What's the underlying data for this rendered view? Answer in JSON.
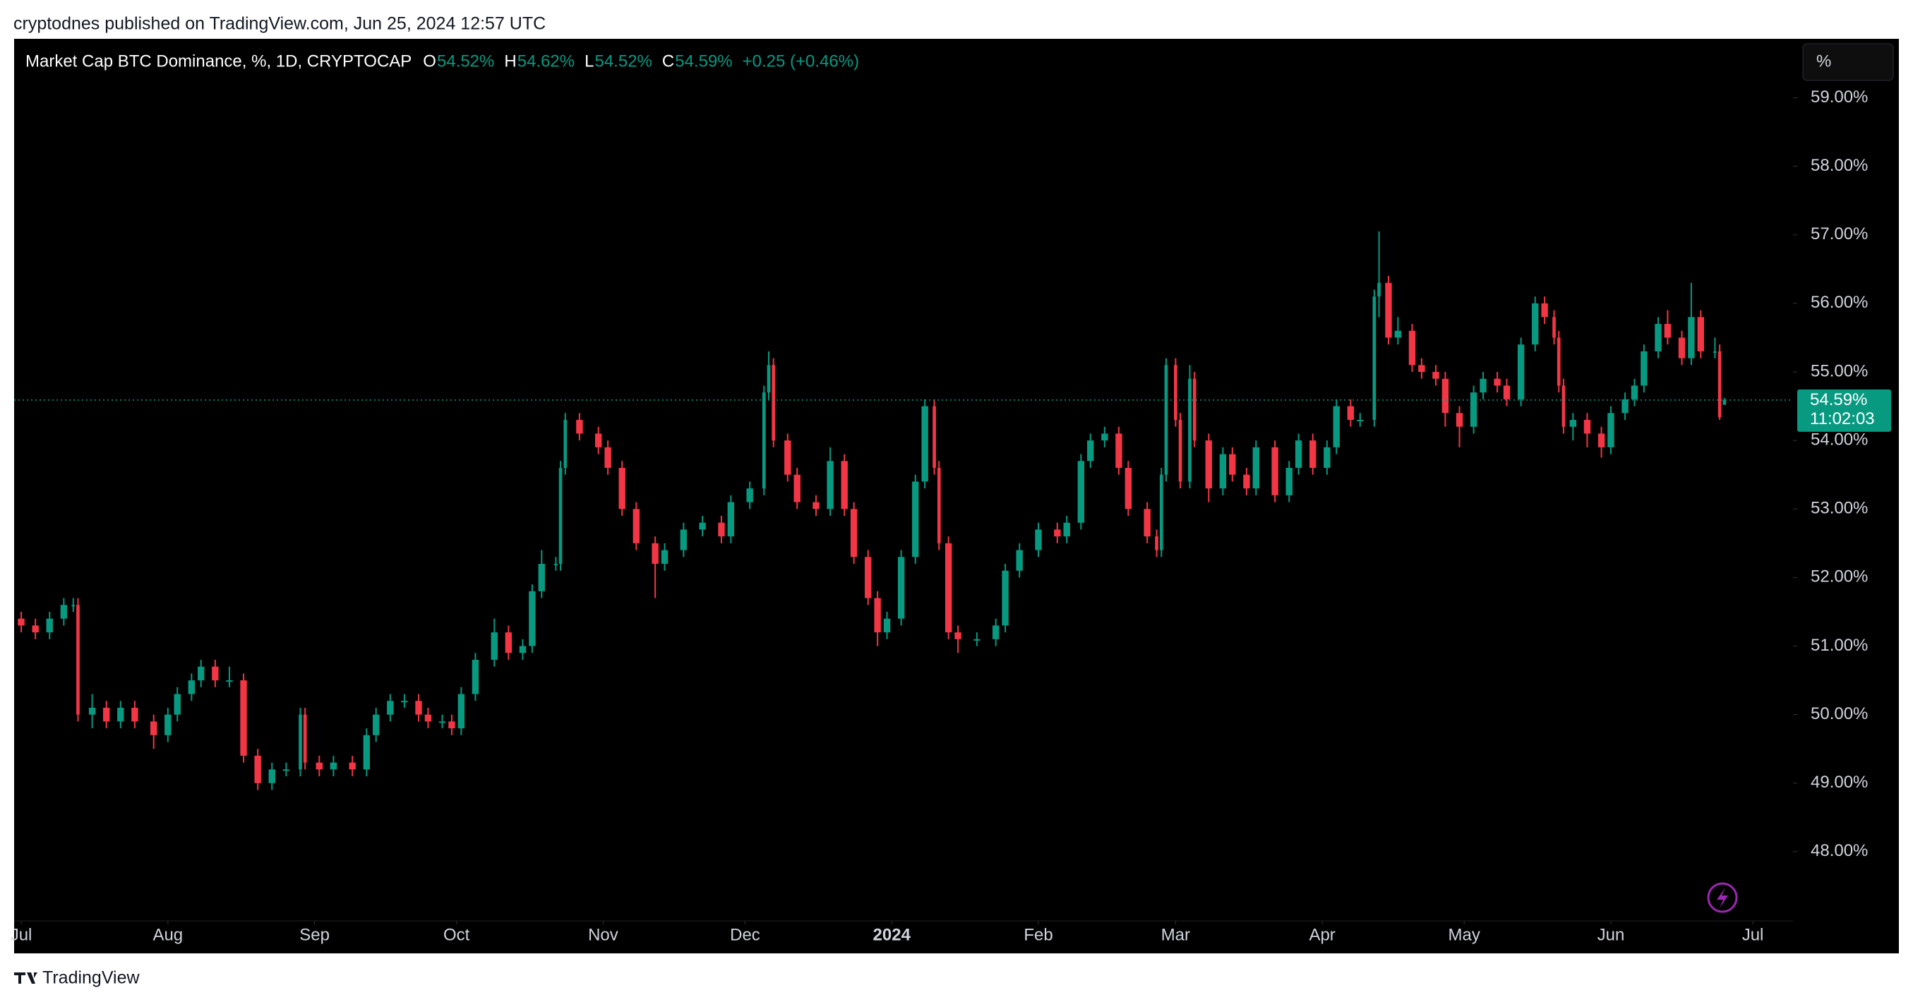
{
  "header": {
    "published": "cryptodnes published on TradingView.com, Jun 25, 2024 12:57 UTC"
  },
  "footer": {
    "brand": "TradingView"
  },
  "chart_data": {
    "type": "candlestick",
    "title": "Market Cap BTC Dominance, %, 1D, CRYPTOCAP",
    "legend": [
      {
        "key": "O",
        "text": "54.52%"
      },
      {
        "key": "H",
        "text": "54.62%"
      },
      {
        "key": "L",
        "text": "54.52%"
      },
      {
        "key": "C",
        "text": "54.59%"
      }
    ],
    "change": "+0.25 (+0.46%)",
    "scale_button": "%",
    "price_label": "54.59%",
    "countdown": "11:02:03",
    "up_color": "#089981",
    "down_color": "#f23645",
    "xlim": [
      -1.5,
      374.5
    ],
    "ylim": [
      46.99,
      59.86
    ],
    "xticks": [
      {
        "value": 0,
        "label": "Jul"
      },
      {
        "value": 31,
        "label": "Aug"
      },
      {
        "value": 62,
        "label": "Sep"
      },
      {
        "value": 92,
        "label": "Oct"
      },
      {
        "value": 123,
        "label": "Nov"
      },
      {
        "value": 153,
        "label": "Dec"
      },
      {
        "value": 184,
        "label": "2024",
        "bold": true
      },
      {
        "value": 215,
        "label": "Feb"
      },
      {
        "value": 244,
        "label": "Mar"
      },
      {
        "value": 275,
        "label": "Apr"
      },
      {
        "value": 305,
        "label": "May"
      },
      {
        "value": 336,
        "label": "Jun"
      },
      {
        "value": 366,
        "label": "Jul"
      }
    ],
    "yticks": [
      {
        "value": 48,
        "label": "48.00%"
      },
      {
        "value": 49,
        "label": "49.00%"
      },
      {
        "value": 50,
        "label": "50.00%"
      },
      {
        "value": 51,
        "label": "51.00%"
      },
      {
        "value": 52,
        "label": "52.00%"
      },
      {
        "value": 53,
        "label": "53.00%"
      },
      {
        "value": 54,
        "label": "54.00%"
      },
      {
        "value": 55,
        "label": "55.00%"
      },
      {
        "value": 56,
        "label": "56.00%"
      },
      {
        "value": 57,
        "label": "57.00%"
      },
      {
        "value": 58,
        "label": "58.00%"
      },
      {
        "value": 59,
        "label": "59.00%"
      }
    ],
    "x": [
      0,
      3,
      6,
      9,
      11,
      12,
      15,
      18,
      21,
      24,
      28,
      31,
      33,
      36,
      38,
      41,
      44,
      47,
      50,
      53,
      56,
      59,
      60,
      63,
      66,
      70,
      73,
      75,
      78,
      81,
      84,
      86,
      89,
      91,
      93,
      96,
      100,
      103,
      106,
      108,
      110,
      113,
      114,
      115,
      118,
      122,
      124,
      127,
      130,
      134,
      136,
      140,
      144,
      148,
      150,
      154,
      157,
      158,
      159,
      162,
      164,
      168,
      171,
      174,
      176,
      179,
      181,
      183,
      186,
      189,
      191,
      193,
      194,
      196,
      198,
      202,
      206,
      208,
      211,
      215,
      219,
      221,
      224,
      226,
      229,
      232,
      234,
      238,
      240,
      241,
      242,
      244,
      245,
      247,
      248,
      251,
      254,
      256,
      259,
      261,
      265,
      268,
      270,
      273,
      276,
      278,
      281,
      283,
      286,
      287,
      289,
      291,
      294,
      296,
      299,
      301,
      304,
      307,
      309,
      312,
      314,
      317,
      320,
      322,
      324,
      325,
      326,
      328,
      331,
      334,
      336,
      339,
      341,
      343,
      346,
      348,
      351,
      353,
      355,
      358,
      359,
      360
    ],
    "open": [
      51.4,
      51.3,
      51.2,
      51.4,
      51.6,
      51.6,
      50.0,
      50.1,
      49.9,
      50.1,
      49.9,
      49.7,
      50.0,
      50.3,
      50.5,
      50.7,
      50.5,
      50.5,
      49.4,
      49.0,
      49.2,
      49.2,
      50.0,
      49.3,
      49.2,
      49.3,
      49.2,
      49.7,
      50.0,
      50.2,
      50.2,
      50.0,
      49.9,
      49.9,
      49.8,
      50.3,
      50.8,
      51.2,
      50.9,
      51.0,
      51.8,
      52.2,
      52.2,
      53.6,
      54.3,
      54.1,
      53.9,
      53.6,
      53.0,
      52.5,
      52.2,
      52.4,
      52.7,
      52.8,
      52.6,
      53.1,
      53.3,
      54.7,
      55.1,
      54.0,
      53.5,
      53.1,
      53.0,
      53.7,
      53.0,
      52.3,
      51.7,
      51.2,
      51.4,
      52.3,
      53.4,
      54.5,
      53.6,
      52.5,
      51.2,
      51.1,
      51.1,
      51.3,
      52.1,
      52.4,
      52.7,
      52.6,
      52.8,
      53.7,
      54.0,
      54.1,
      53.6,
      53.0,
      52.6,
      52.4,
      53.5,
      55.1,
      54.3,
      53.4,
      54.9,
      54.0,
      53.3,
      53.8,
      53.5,
      53.3,
      53.9,
      53.2,
      53.6,
      54.0,
      53.6,
      53.9,
      54.5,
      54.3,
      54.3,
      56.1,
      56.3,
      55.5,
      55.6,
      55.1,
      55.0,
      54.9,
      54.4,
      54.2,
      54.7,
      54.9,
      54.8,
      54.6,
      55.4,
      56.0,
      55.8,
      55.5,
      54.8,
      54.2,
      54.3,
      54.1,
      53.9,
      54.4,
      54.6,
      54.8,
      55.3,
      55.7,
      55.5,
      55.2,
      55.8,
      55.3,
      55.3,
      54.52
    ],
    "high": [
      51.5,
      51.4,
      51.5,
      51.7,
      51.7,
      51.7,
      50.3,
      50.2,
      50.2,
      50.2,
      50.0,
      50.1,
      50.4,
      50.6,
      50.8,
      50.8,
      50.7,
      50.6,
      49.5,
      49.3,
      49.3,
      50.1,
      50.1,
      49.4,
      49.4,
      49.4,
      49.8,
      50.1,
      50.3,
      50.3,
      50.3,
      50.1,
      50.0,
      50.0,
      50.4,
      50.9,
      51.4,
      51.3,
      51.1,
      51.9,
      52.4,
      52.3,
      53.7,
      54.4,
      54.4,
      54.2,
      54.0,
      53.7,
      53.1,
      52.6,
      52.5,
      52.8,
      52.9,
      52.9,
      53.2,
      53.4,
      54.8,
      55.3,
      55.2,
      54.1,
      53.6,
      53.2,
      53.9,
      53.8,
      53.1,
      52.4,
      51.8,
      51.5,
      52.4,
      53.5,
      54.6,
      54.6,
      53.7,
      52.6,
      51.3,
      51.2,
      51.4,
      52.2,
      52.5,
      52.8,
      52.8,
      52.9,
      53.8,
      54.1,
      54.2,
      54.2,
      53.7,
      53.1,
      52.7,
      53.6,
      55.2,
      55.2,
      54.4,
      55.1,
      55.0,
      54.1,
      53.9,
      53.9,
      53.6,
      54.0,
      54.0,
      53.7,
      54.1,
      54.1,
      54.0,
      54.6,
      54.6,
      54.4,
      56.2,
      57.05,
      56.4,
      55.8,
      55.7,
      55.2,
      55.1,
      55.0,
      54.5,
      54.8,
      55.0,
      55.0,
      54.9,
      55.5,
      56.1,
      56.1,
      55.9,
      55.6,
      54.9,
      54.4,
      54.4,
      54.2,
      54.5,
      54.7,
      54.9,
      55.4,
      55.8,
      55.9,
      55.6,
      56.3,
      55.9,
      55.5,
      55.4,
      54.62
    ],
    "low": [
      51.2,
      51.1,
      51.1,
      51.3,
      51.5,
      49.9,
      49.8,
      49.8,
      49.8,
      49.8,
      49.5,
      49.6,
      49.9,
      50.2,
      50.4,
      50.4,
      50.4,
      49.3,
      48.9,
      48.9,
      49.1,
      49.1,
      49.2,
      49.1,
      49.1,
      49.1,
      49.1,
      49.6,
      49.9,
      50.1,
      49.9,
      49.8,
      49.8,
      49.7,
      49.7,
      50.2,
      50.7,
      50.8,
      50.8,
      50.9,
      51.7,
      52.1,
      52.1,
      53.5,
      54.0,
      53.8,
      53.5,
      52.9,
      52.4,
      51.7,
      52.1,
      52.3,
      52.6,
      52.5,
      52.5,
      53.0,
      53.2,
      54.6,
      53.9,
      53.4,
      53.0,
      52.9,
      52.9,
      52.9,
      52.2,
      51.6,
      51.0,
      51.1,
      51.3,
      52.2,
      53.3,
      53.5,
      52.4,
      51.1,
      50.9,
      51.0,
      51.0,
      51.2,
      52.0,
      52.3,
      52.5,
      52.5,
      52.7,
      53.6,
      53.9,
      53.5,
      52.9,
      52.5,
      52.3,
      52.3,
      53.4,
      54.2,
      53.3,
      53.3,
      53.9,
      53.1,
      53.2,
      53.4,
      53.2,
      53.2,
      53.1,
      53.1,
      53.5,
      53.5,
      53.5,
      53.8,
      54.2,
      54.2,
      54.2,
      55.8,
      55.4,
      55.4,
      55.0,
      54.9,
      54.8,
      54.2,
      53.9,
      54.1,
      54.6,
      54.7,
      54.5,
      54.5,
      55.3,
      55.7,
      55.4,
      54.7,
      54.1,
      54.0,
      53.9,
      53.75,
      53.8,
      54.3,
      54.5,
      54.7,
      55.2,
      55.4,
      55.1,
      55.1,
      55.2,
      55.2,
      54.3,
      54.52
    ],
    "close": [
      51.3,
      51.2,
      51.4,
      51.6,
      51.6,
      50.0,
      50.1,
      49.9,
      50.1,
      49.9,
      49.7,
      50.0,
      50.3,
      50.5,
      50.7,
      50.5,
      50.5,
      49.4,
      49.0,
      49.2,
      49.2,
      50.0,
      49.3,
      49.2,
      49.3,
      49.2,
      49.7,
      50.0,
      50.2,
      50.2,
      50.0,
      49.9,
      49.9,
      49.8,
      50.3,
      50.8,
      51.2,
      50.9,
      51.0,
      51.8,
      52.2,
      52.2,
      53.6,
      54.3,
      54.1,
      53.9,
      53.6,
      53.0,
      52.5,
      52.2,
      52.4,
      52.7,
      52.8,
      52.6,
      53.1,
      53.3,
      54.7,
      55.1,
      54.0,
      53.5,
      53.1,
      53.0,
      53.7,
      53.0,
      52.3,
      51.7,
      51.2,
      51.4,
      52.3,
      53.4,
      54.5,
      53.6,
      52.5,
      51.2,
      51.1,
      51.1,
      51.3,
      52.1,
      52.4,
      52.7,
      52.6,
      52.8,
      53.7,
      54.0,
      54.1,
      53.6,
      53.0,
      52.6,
      52.4,
      53.5,
      55.1,
      54.3,
      53.4,
      54.9,
      54.0,
      53.3,
      53.8,
      53.5,
      53.3,
      53.9,
      53.2,
      53.6,
      54.0,
      53.6,
      53.9,
      54.5,
      54.3,
      54.3,
      56.1,
      56.3,
      55.5,
      55.6,
      55.1,
      55.0,
      54.9,
      54.4,
      54.2,
      54.7,
      54.9,
      54.8,
      54.6,
      55.4,
      56.0,
      55.8,
      55.5,
      54.8,
      54.2,
      54.3,
      54.1,
      53.9,
      54.4,
      54.6,
      54.8,
      55.3,
      55.7,
      55.5,
      55.2,
      55.8,
      55.3,
      55.3,
      54.34,
      54.59
    ]
  }
}
